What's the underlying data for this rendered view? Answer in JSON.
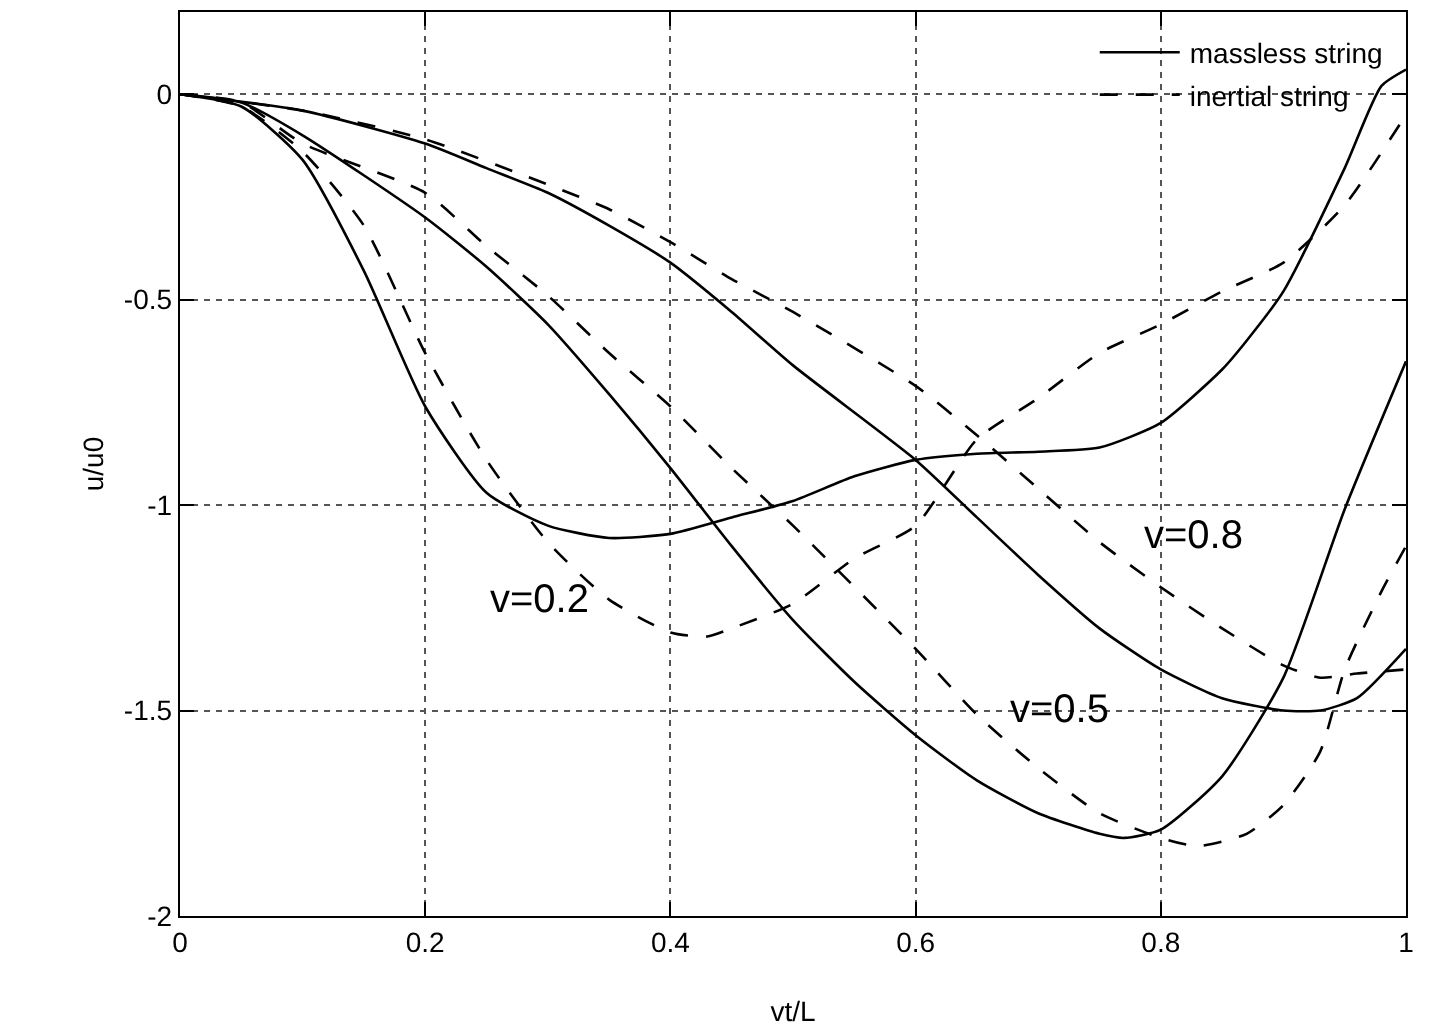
{
  "chart_data": {
    "type": "line",
    "xlabel": "vt/L",
    "ylabel": "u/u0",
    "xlim": [
      0,
      1
    ],
    "xticks": [
      0,
      0.2,
      0.4,
      0.6,
      0.8,
      1
    ],
    "ylim": [
      -2,
      0.2
    ],
    "yticks": [
      -2,
      -1.5,
      -1,
      -0.5,
      0
    ],
    "grid": true,
    "legend": "top right",
    "marker": "none",
    "series": [
      {
        "name": "massless string",
        "color": "#000000",
        "line_style": "solid",
        "x": [
          0,
          0.05,
          0.1,
          0.15,
          0.2,
          0.25,
          0.3,
          0.35,
          0.4,
          0.45,
          0.5,
          0.55,
          0.6,
          0.65,
          0.7,
          0.75,
          0.8,
          0.85,
          0.87,
          0.9,
          0.95,
          0.98,
          1
        ],
        "values": [
          0,
          -0.03,
          -0.16,
          -0.43,
          -0.76,
          -0.97,
          -1.05,
          -1.08,
          -1.07,
          -1.03,
          -0.99,
          -0.93,
          -0.89,
          -0.875,
          -0.87,
          -0.86,
          -0.8,
          -0.67,
          -0.6,
          -0.48,
          -0.18,
          0.02,
          0.06
        ]
      },
      {
        "name": "inertial string",
        "color": "#000000",
        "line_style": "dashed",
        "x": [
          0,
          0.05,
          0.1,
          0.15,
          0.2,
          0.25,
          0.3,
          0.35,
          0.4,
          0.43,
          0.45,
          0.5,
          0.55,
          0.6,
          0.65,
          0.7,
          0.75,
          0.8,
          0.85,
          0.9,
          0.95,
          1
        ],
        "values": [
          0,
          -0.03,
          -0.14,
          -0.32,
          -0.63,
          -0.89,
          -1.09,
          -1.23,
          -1.31,
          -1.32,
          -1.3,
          -1.24,
          -1.13,
          -1.05,
          -0.84,
          -0.74,
          -0.63,
          -0.56,
          -0.48,
          -0.41,
          -0.27,
          -0.05
        ]
      },
      {
        "color": "#000000",
        "line_style": "solid",
        "x": [
          0,
          0.05,
          0.1,
          0.2,
          0.25,
          0.3,
          0.35,
          0.4,
          0.45,
          0.5,
          0.55,
          0.6,
          0.65,
          0.7,
          0.75,
          0.77,
          0.8,
          0.85,
          0.9,
          0.95,
          1
        ],
        "values": [
          0,
          -0.02,
          -0.1,
          -0.3,
          -0.42,
          -0.56,
          -0.73,
          -0.91,
          -1.1,
          -1.28,
          -1.43,
          -1.56,
          -1.67,
          -1.75,
          -1.8,
          -1.81,
          -1.79,
          -1.66,
          -1.42,
          -1.01,
          -0.65
        ]
      },
      {
        "color": "#000000",
        "line_style": "dashed",
        "x": [
          0,
          0.05,
          0.1,
          0.2,
          0.25,
          0.3,
          0.35,
          0.4,
          0.45,
          0.5,
          0.6,
          0.65,
          0.7,
          0.75,
          0.8,
          0.83,
          0.87,
          0.9,
          0.93,
          0.95,
          0.98,
          1
        ],
        "values": [
          0,
          -0.02,
          -0.12,
          -0.24,
          -0.37,
          -0.49,
          -0.63,
          -0.76,
          -0.91,
          -1.05,
          -1.35,
          -1.51,
          -1.64,
          -1.75,
          -1.81,
          -1.83,
          -1.8,
          -1.73,
          -1.6,
          -1.4,
          -1.21,
          -1.1
        ]
      },
      {
        "color": "#000000",
        "line_style": "solid",
        "x": [
          0,
          0.1,
          0.2,
          0.25,
          0.3,
          0.35,
          0.4,
          0.45,
          0.5,
          0.6,
          0.65,
          0.7,
          0.75,
          0.8,
          0.85,
          0.9,
          0.93,
          0.96,
          1
        ],
        "values": [
          0,
          -0.04,
          -0.12,
          -0.18,
          -0.24,
          -0.32,
          -0.41,
          -0.53,
          -0.66,
          -0.89,
          -1.03,
          -1.17,
          -1.3,
          -1.4,
          -1.47,
          -1.5,
          -1.5,
          -1.47,
          -1.35
        ]
      },
      {
        "color": "#000000",
        "line_style": "dashed",
        "x": [
          0,
          0.1,
          0.2,
          0.3,
          0.35,
          0.4,
          0.45,
          0.5,
          0.6,
          0.65,
          0.7,
          0.75,
          0.8,
          0.85,
          0.9,
          0.93,
          0.96,
          1
        ],
        "values": [
          0,
          -0.04,
          -0.11,
          -0.22,
          -0.28,
          -0.36,
          -0.45,
          -0.53,
          -0.71,
          -0.83,
          -0.96,
          -1.09,
          -1.2,
          -1.3,
          -1.39,
          -1.42,
          -1.41,
          -1.4
        ]
      }
    ],
    "annotations": [
      "v=0.2",
      "v=0.5",
      "v=0.8"
    ]
  }
}
